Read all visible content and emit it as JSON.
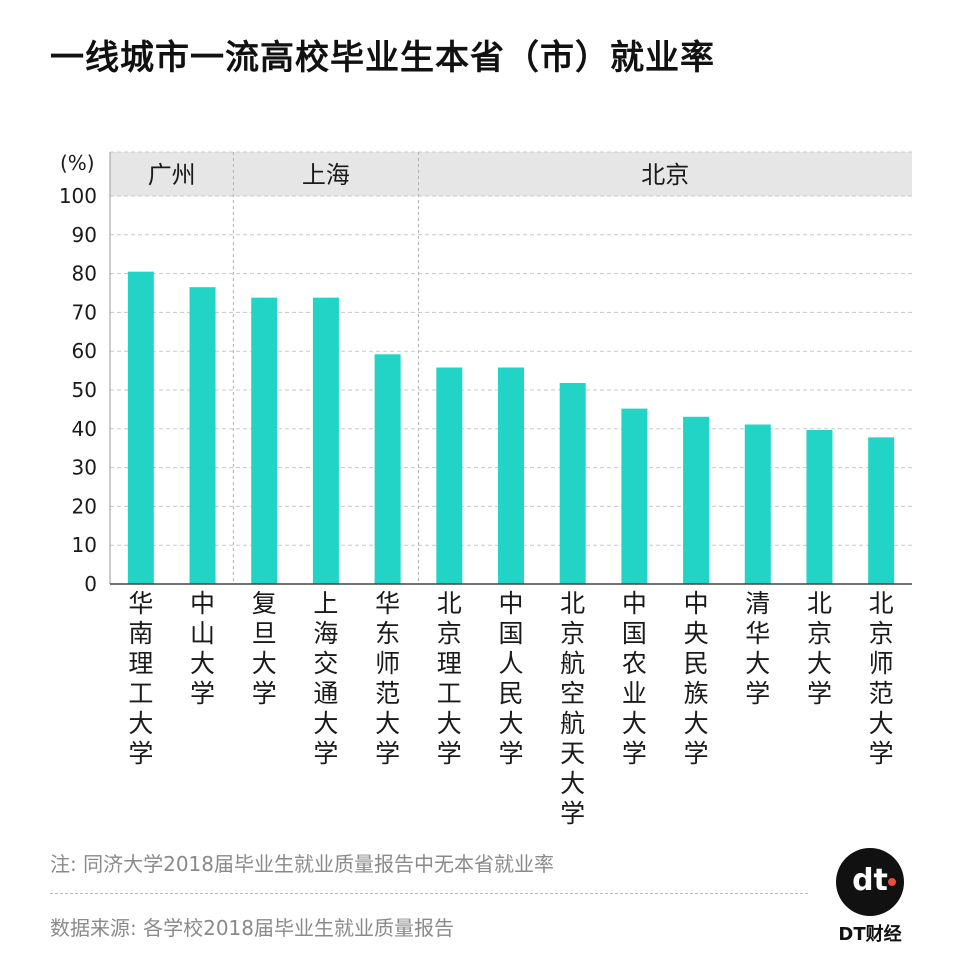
{
  "title": "一线城市一流高校毕业生本省（市）就业率",
  "note": "注: 同济大学2018届毕业生就业质量报告中无本省就业率",
  "source": "数据来源: 各学校2018届毕业生就业质量报告",
  "logo": {
    "mark": "dt",
    "text": "DT财经"
  },
  "colors": {
    "bar": "#22d4c6",
    "group_band": "#e6e6e6",
    "grid": "#c8c8c8",
    "text": "#1a1a1a",
    "muted": "#8a8a8a"
  },
  "chart_data": {
    "type": "bar",
    "ylabel": "(%)",
    "ylim": [
      0,
      100
    ],
    "yticks": [
      0,
      10,
      20,
      30,
      40,
      50,
      60,
      70,
      80,
      90,
      100
    ],
    "grid": true,
    "groups": [
      {
        "name": "广州",
        "count": 2
      },
      {
        "name": "上海",
        "count": 3
      },
      {
        "name": "北京",
        "count": 8
      }
    ],
    "categories": [
      "华南理工大学",
      "中山大学",
      "复旦大学",
      "上海交通大学",
      "华东师范大学",
      "北京理工大学",
      "中国人民大学",
      "北京航空航天大学",
      "中国农业大学",
      "中央民族大学",
      "清华大学",
      "北京大学",
      "北京师范大学"
    ],
    "values": [
      80.5,
      76.5,
      73.8,
      73.8,
      59.2,
      55.8,
      55.8,
      51.8,
      45.2,
      43.1,
      41.1,
      39.7,
      37.8
    ]
  }
}
